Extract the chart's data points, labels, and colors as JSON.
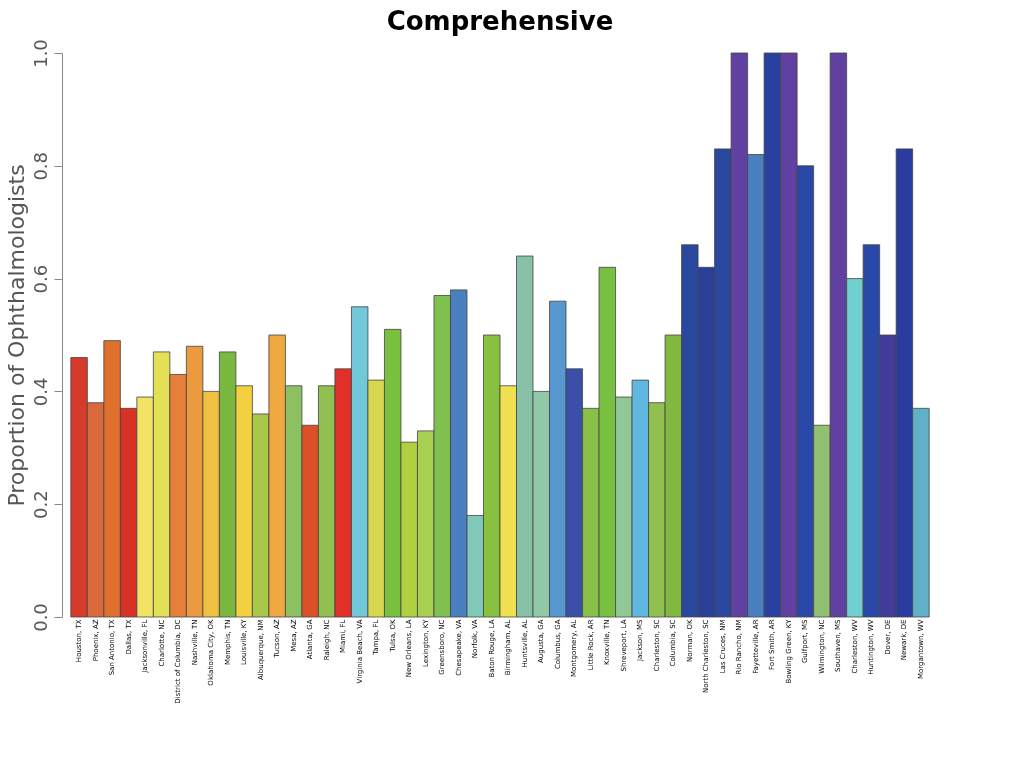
{
  "chart_data": {
    "type": "bar",
    "title": "Comprehensive",
    "ylabel": "Proportion of Ophthalmologists",
    "categories": [
      "Houston, TX",
      "Phoenix, AZ",
      "San Antonio, TX",
      "Dallas, TX",
      "Jacksonville, FL",
      "Charlotte, NC",
      "District of Columbia, DC",
      "Nashville, TN",
      "Oklahoma City, OK",
      "Memphis, TN",
      "Louisville, KY",
      "Albuquerque, NM",
      "Tucson, AZ",
      "Mesa, AZ",
      "Atlanta, GA",
      "Raleigh, NC",
      "Miami, FL",
      "Virginia Beach, VA",
      "Tampa, FL",
      "Tulsa, OK",
      "New Orleans, LA",
      "Lexington, KY",
      "Greensboro, NC",
      "Chesapeake, VA",
      "Norfolk, VA",
      "Baton Rouge, LA",
      "Birmingham, AL",
      "Huntsville, AL",
      "Augusta, GA",
      "Columbus, GA",
      "Montgomery, AL",
      "Little Rock, AR",
      "Knoxville, TN",
      "Shreveport, LA",
      "Jackson, MS",
      "Charleston, SC",
      "Columbia, SC",
      "Norman, OK",
      "North Charleston, SC",
      "Las Cruces, NM",
      "Rio Rancho, NM",
      "Fayetteville, AR",
      "Fort Smith, AR",
      "Bowling Green, KY",
      "Gulfport, MS",
      "Wilmington, NC",
      "Southaven, MS",
      "Charleston, WV",
      "Huntington, WV",
      "Dover, DE",
      "Newark, DE",
      "Morgantown, WV"
    ],
    "values": [
      0.46,
      0.38,
      0.49,
      0.37,
      0.39,
      0.47,
      0.43,
      0.48,
      0.4,
      0.47,
      0.41,
      0.36,
      0.5,
      0.41,
      0.34,
      0.41,
      0.44,
      0.55,
      0.42,
      0.51,
      0.31,
      0.33,
      0.57,
      0.58,
      0.18,
      0.5,
      0.41,
      0.64,
      0.4,
      0.56,
      0.44,
      0.37,
      0.62,
      0.39,
      0.42,
      0.38,
      0.5,
      0.66,
      0.62,
      0.83,
      1.0,
      0.82,
      1.0,
      1.0,
      0.8,
      0.34,
      1.0,
      0.6,
      0.66,
      0.5,
      0.83,
      0.37
    ],
    "colors": [
      "#d63a2a",
      "#d9683a",
      "#e0702e",
      "#d83228",
      "#f2e266",
      "#e3e055",
      "#e8803c",
      "#eb9a40",
      "#f0c040",
      "#7ab840",
      "#f3d040",
      "#a8c84a",
      "#f0a840",
      "#8cc060",
      "#dc5028",
      "#90c050",
      "#e03028",
      "#70c8d8",
      "#d8d850",
      "#78c040",
      "#b0d040",
      "#a8d050",
      "#80c050",
      "#4a80c0",
      "#80c8b8",
      "#88c040",
      "#f0e050",
      "#88c0a8",
      "#90c8a8",
      "#5898d0",
      "#3a50a8",
      "#88c048",
      "#78c040",
      "#90c898",
      "#60b8e0",
      "#90c050",
      "#80b840",
      "#2a48a0",
      "#2a4098",
      "#2a48a0",
      "#6040a0",
      "#4a80c0",
      "#2a40a0",
      "#6040a0",
      "#2a48a8",
      "#90c070",
      "#6040a0",
      "#70d0d0",
      "#2a48a8",
      "#403c98",
      "#2a3ca0",
      "#60b0c8"
    ],
    "ylim": [
      0,
      1
    ],
    "yticks": [
      {
        "value": 0,
        "label": "0.0"
      },
      {
        "value": 0.2,
        "label": "0.2"
      },
      {
        "value": 0.4,
        "label": "0.4"
      },
      {
        "value": 0.6,
        "label": "0.6"
      },
      {
        "value": 0.8,
        "label": "0.8"
      },
      {
        "value": 1,
        "label": "1.0"
      }
    ],
    "grid": false,
    "legend": false
  }
}
